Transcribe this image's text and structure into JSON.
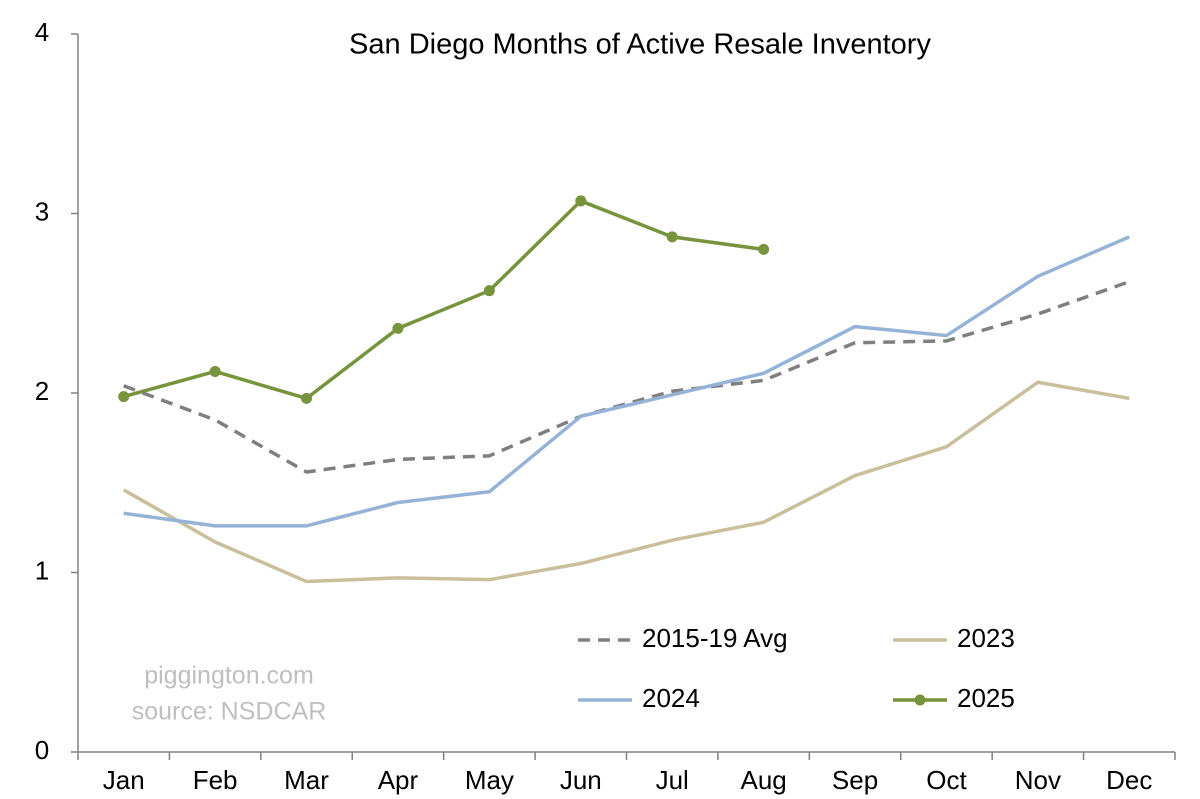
{
  "chart_data": {
    "type": "line",
    "title": "San Diego Months of Active Resale Inventory",
    "categories": [
      "Jan",
      "Feb",
      "Mar",
      "Apr",
      "May",
      "Jun",
      "Jul",
      "Aug",
      "Sep",
      "Oct",
      "Nov",
      "Dec"
    ],
    "series": [
      {
        "name": "2015-19 Avg",
        "color": "#7f7f7f",
        "style": "dashed",
        "values": [
          2.04,
          1.85,
          1.56,
          1.63,
          1.65,
          1.87,
          2.01,
          2.07,
          2.28,
          2.29,
          2.44,
          2.62
        ]
      },
      {
        "name": "2023",
        "color": "#c9bf9a",
        "style": "solid",
        "values": [
          1.46,
          1.17,
          0.95,
          0.97,
          0.96,
          1.05,
          1.18,
          1.28,
          1.54,
          1.7,
          2.06,
          1.97
        ]
      },
      {
        "name": "2024",
        "color": "#95b3d7",
        "style": "solid",
        "values": [
          1.33,
          1.26,
          1.26,
          1.39,
          1.45,
          1.87,
          1.99,
          2.11,
          2.37,
          2.32,
          2.65,
          2.87
        ]
      },
      {
        "name": "2025",
        "color": "#77933c",
        "style": "solid",
        "markers": true,
        "values": [
          1.98,
          2.12,
          1.97,
          2.36,
          2.57,
          3.07,
          2.87,
          2.8,
          null,
          null,
          null,
          null
        ]
      }
    ],
    "ylim": [
      0,
      4
    ],
    "yticks": [
      0,
      1,
      2,
      3,
      4
    ],
    "grid": false,
    "legend": "lower right",
    "annotations": [
      "piggington.com",
      "source: NSDCAR"
    ]
  }
}
